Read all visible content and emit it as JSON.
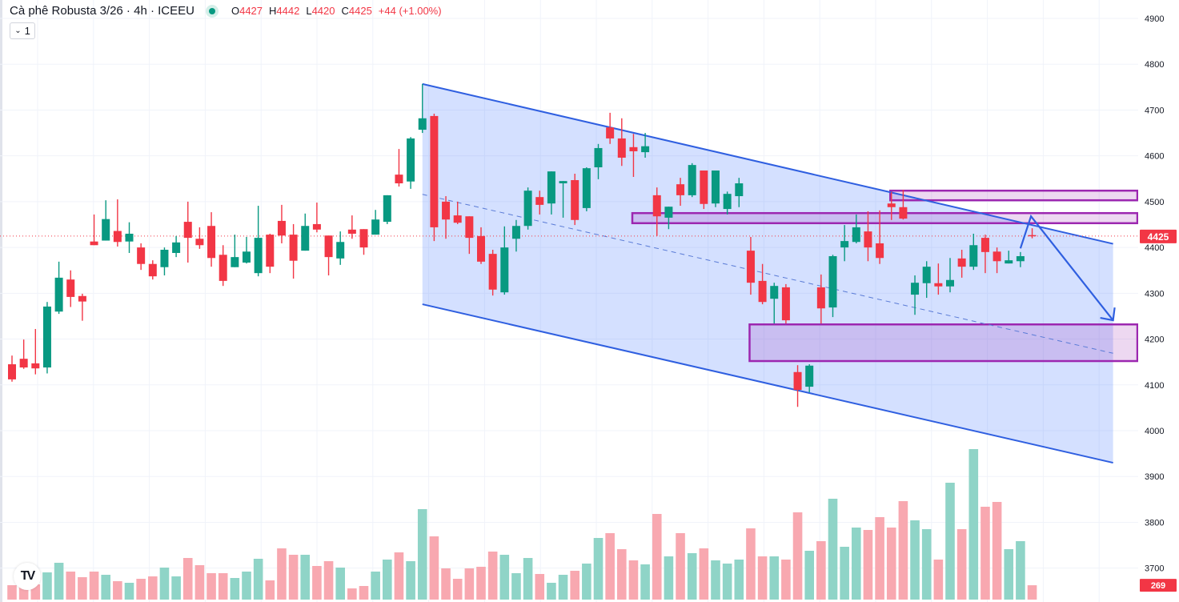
{
  "header": {
    "title": "Cà phê Robusta 3/26 · 4h · ICEEU",
    "open_label": "O",
    "open": "4427",
    "high_label": "H",
    "high": "4442",
    "low_label": "L",
    "low": "4420",
    "close_label": "C",
    "close": "4425",
    "change": "+44 (+1.00%)",
    "indicator_toggle": "1"
  },
  "colors": {
    "up": "#089981",
    "down": "#f23645",
    "channel": "#2f5fe0",
    "zone": "#9c27b0"
  },
  "chart_data": {
    "type": "candlestick",
    "title": "Cà phê Robusta 3/26 · 4h · ICEEU",
    "y_ticks": [
      "4900",
      "4800",
      "4700",
      "4600",
      "4500",
      "4400",
      "4300",
      "4200",
      "4100",
      "4000",
      "3900",
      "3800",
      "3700"
    ],
    "ylim": [
      3680,
      4930
    ],
    "grid": true,
    "last_price": "4425",
    "last_volume": "269",
    "candles_ohlc": [
      [
        4145,
        4164,
        4107,
        4112
      ],
      [
        4157,
        4199,
        4135,
        4138
      ],
      [
        4147,
        4222,
        4123,
        4136
      ],
      [
        4138,
        4281,
        4125,
        4271
      ],
      [
        4260,
        4369,
        4255,
        4334
      ],
      [
        4330,
        4350,
        4270,
        4292
      ],
      [
        4294,
        4299,
        4240,
        4282
      ],
      [
        4413,
        4472,
        4405,
        4405
      ],
      [
        4415,
        4503,
        4415,
        4462
      ],
      [
        4436,
        4505,
        4402,
        4412
      ],
      [
        4413,
        4455,
        4388,
        4430
      ],
      [
        4400,
        4409,
        4351,
        4364
      ],
      [
        4364,
        4372,
        4330,
        4337
      ],
      [
        4357,
        4400,
        4339,
        4395
      ],
      [
        4388,
        4425,
        4379,
        4411
      ],
      [
        4456,
        4500,
        4367,
        4421
      ],
      [
        4419,
        4444,
        4397,
        4405
      ],
      [
        4447,
        4477,
        4358,
        4377
      ],
      [
        4384,
        4405,
        4316,
        4327
      ],
      [
        4357,
        4428,
        4357,
        4379
      ],
      [
        4367,
        4423,
        4365,
        4391
      ],
      [
        4344,
        4491,
        4337,
        4421
      ],
      [
        4428,
        4430,
        4344,
        4358
      ],
      [
        4458,
        4493,
        4409,
        4426
      ],
      [
        4428,
        4451,
        4332,
        4371
      ],
      [
        4393,
        4474,
        4393,
        4447
      ],
      [
        4451,
        4498,
        4433,
        4439
      ],
      [
        4426,
        4426,
        4339,
        4379
      ],
      [
        4376,
        4435,
        4362,
        4412
      ],
      [
        4439,
        4470,
        4419,
        4430
      ],
      [
        4440,
        4440,
        4384,
        4400
      ],
      [
        4428,
        4482,
        4428,
        4461
      ],
      [
        4456,
        4514,
        4451,
        4514
      ],
      [
        4559,
        4615,
        4533,
        4540
      ],
      [
        4544,
        4641,
        4528,
        4638
      ],
      [
        4657,
        4757,
        4650,
        4682
      ],
      [
        4687,
        4692,
        4414,
        4444
      ],
      [
        4500,
        4512,
        4419,
        4461
      ],
      [
        4470,
        4500,
        4451,
        4454
      ],
      [
        4468,
        4468,
        4386,
        4421
      ],
      [
        4425,
        4444,
        4364,
        4369
      ],
      [
        4386,
        4395,
        4295,
        4308
      ],
      [
        4302,
        4446,
        4297,
        4400
      ],
      [
        4419,
        4460,
        4391,
        4447
      ],
      [
        4447,
        4531,
        4439,
        4524
      ],
      [
        4510,
        4524,
        4472,
        4493
      ],
      [
        4496,
        4566,
        4472,
        4566
      ],
      [
        4540,
        4545,
        4465,
        4545
      ],
      [
        4547,
        4561,
        4449,
        4460
      ],
      [
        4486,
        4575,
        4479,
        4573
      ],
      [
        4575,
        4626,
        4549,
        4617
      ],
      [
        4662,
        4694,
        4626,
        4638
      ],
      [
        4638,
        4682,
        4578,
        4596
      ],
      [
        4619,
        4648,
        4554,
        4610
      ],
      [
        4608,
        4650,
        4596,
        4621
      ],
      [
        4514,
        4531,
        4425,
        4468
      ],
      [
        4465,
        4489,
        4440,
        4489
      ],
      [
        4538,
        4552,
        4491,
        4514
      ],
      [
        4514,
        4584,
        4510,
        4580
      ],
      [
        4568,
        4568,
        4484,
        4495
      ],
      [
        4496,
        4568,
        4488,
        4568
      ],
      [
        4484,
        4522,
        4472,
        4517
      ],
      [
        4512,
        4552,
        4488,
        4540
      ],
      [
        4393,
        4423,
        4297,
        4323
      ],
      [
        4327,
        4364,
        4276,
        4281
      ],
      [
        4288,
        4323,
        4234,
        4316
      ],
      [
        4313,
        4320,
        4234,
        4241
      ],
      [
        4128,
        4143,
        4052,
        4089
      ],
      [
        4096,
        4145,
        4084,
        4142
      ],
      [
        4313,
        4341,
        4234,
        4267
      ],
      [
        4269,
        4384,
        4248,
        4381
      ],
      [
        4400,
        4449,
        4370,
        4414
      ],
      [
        4412,
        4472,
        4409,
        4444
      ],
      [
        4435,
        4479,
        4370,
        4400
      ],
      [
        4409,
        4481,
        4364,
        4377
      ],
      [
        4496,
        4521,
        4460,
        4488
      ],
      [
        4488,
        4526,
        4461,
        4463
      ],
      [
        4297,
        4339,
        4253,
        4323
      ],
      [
        4322,
        4370,
        4290,
        4358
      ],
      [
        4322,
        4365,
        4297,
        4315
      ],
      [
        4315,
        4377,
        4302,
        4329
      ],
      [
        4376,
        4395,
        4334,
        4358
      ],
      [
        4358,
        4430,
        4351,
        4405
      ],
      [
        4421,
        4428,
        4344,
        4390
      ],
      [
        4391,
        4400,
        4344,
        4370
      ],
      [
        4365,
        4393,
        4365,
        4372
      ],
      [
        4370,
        4390,
        4357,
        4381
      ],
      [
        4427,
        4442,
        4420,
        4425
      ]
    ],
    "volumes": [
      270,
      255,
      285,
      510,
      690,
      525,
      420,
      525,
      465,
      345,
      315,
      390,
      435,
      600,
      435,
      780,
      645,
      495,
      495,
      405,
      525,
      765,
      360,
      960,
      840,
      840,
      630,
      720,
      600,
      210,
      255,
      525,
      750,
      885,
      720,
      1695,
      1185,
      585,
      390,
      585,
      615,
      900,
      840,
      495,
      780,
      480,
      315,
      465,
      540,
      675,
      1155,
      1245,
      945,
      735,
      660,
      1605,
      810,
      1245,
      870,
      960,
      735,
      675,
      750,
      1335,
      810,
      810,
      750,
      1635,
      915,
      1095,
      1890,
      990,
      1350,
      1305,
      1545,
      1350,
      1845,
      1485,
      1320,
      750,
      2190,
      1320,
      2820,
      1740,
      1830,
      945,
      1095,
      269
    ],
    "drawings": {
      "channel": {
        "upper": [
          [
            35,
            4757
          ],
          [
            93.9,
            4408
          ]
        ],
        "lower": [
          [
            35,
            4276
          ],
          [
            93.9,
            3930
          ]
        ],
        "mid": [
          [
            35,
            4516
          ],
          [
            93.9,
            4169
          ]
        ]
      },
      "zones": [
        {
          "from_bar": 74.9,
          "top": 4524,
          "bottom": 4503
        },
        {
          "from_bar": 52.9,
          "top": 4475,
          "bottom": 4453
        },
        {
          "from_bar": 62.9,
          "top": 4232,
          "bottom": 4152
        }
      ],
      "path_arrow": [
        [
          86.0,
          4398
        ],
        [
          86.9,
          4468
        ],
        [
          93.9,
          4241
        ]
      ]
    }
  }
}
